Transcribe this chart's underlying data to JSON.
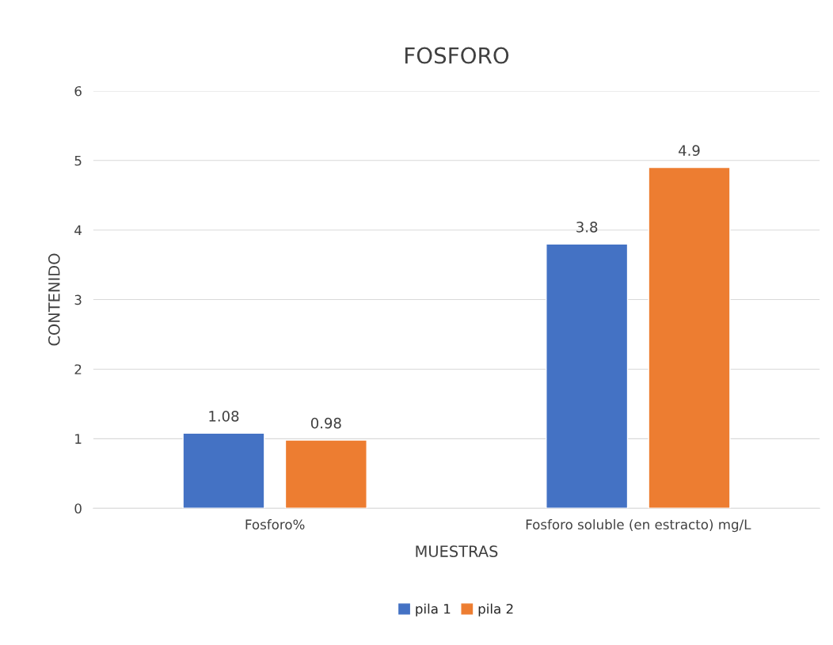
{
  "chart_data": {
    "type": "bar",
    "title": "FOSFORO",
    "xlabel": "MUESTRAS",
    "ylabel": "CONTENIDO",
    "categories": [
      "Fosforo%",
      "Fosforo soluble (en estracto) mg/L"
    ],
    "series": [
      {
        "name": "pila 1",
        "color": "#4472c4",
        "values": [
          1.08,
          3.8
        ]
      },
      {
        "name": "pila 2",
        "color": "#ed7d31",
        "values": [
          0.98,
          4.9
        ]
      }
    ],
    "ylim": [
      0,
      6
    ],
    "yticks": [
      0,
      1,
      2,
      3,
      4,
      5,
      6
    ],
    "grid": "y",
    "legend": "bottom",
    "data_labels": true
  }
}
